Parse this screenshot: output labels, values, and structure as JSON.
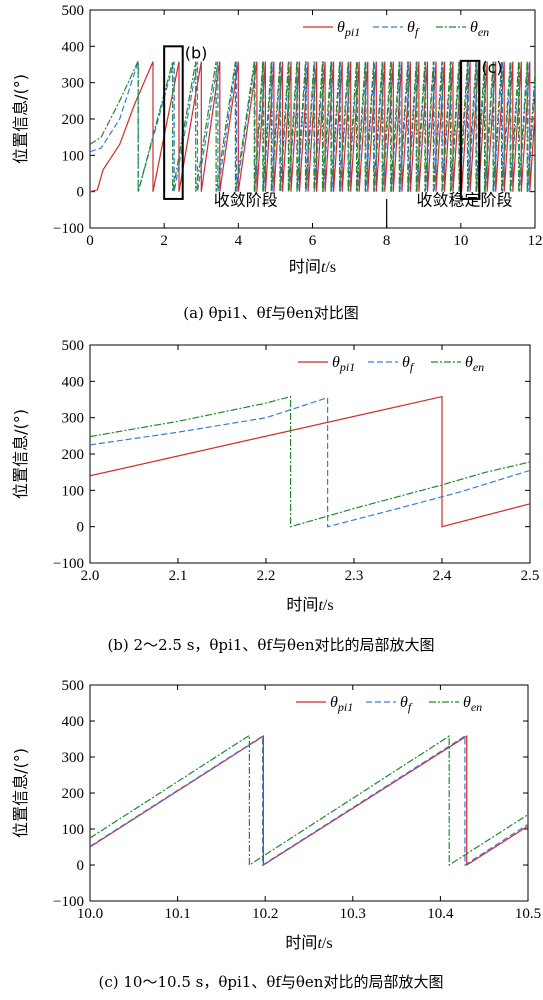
{
  "colors": {
    "pi1": "#d02b2b",
    "f": "#3b7bd6",
    "en": "#1f8a2c"
  },
  "chart_data": [
    {
      "type": "line",
      "xlabel_main": "时间",
      "xlabel_var": "t",
      "xlabel_unit": "/s",
      "ylabel": "位置信息/(°)",
      "xlim": [
        0,
        12
      ],
      "ylim": [
        -100,
        500
      ],
      "xticks": [
        "0",
        "2",
        "4",
        "6",
        "8",
        "10",
        "12"
      ],
      "yticks": [
        "−100",
        "0",
        "100",
        "200",
        "300",
        "400",
        "500"
      ],
      "legend": [
        "θpi1",
        "θf",
        "θen"
      ],
      "legend_position": "top-right",
      "caption": "(a) θpi1、θf与θen对比图",
      "region_labels": [
        "收敛阶段",
        "收敛稳定阶段"
      ],
      "region_divider_x": 8,
      "box_labels": [
        "(b)",
        "(c)"
      ],
      "boxes": [
        {
          "x": [
            2.0,
            2.5
          ],
          "y": [
            -20,
            400
          ]
        },
        {
          "x": [
            10.0,
            10.5
          ],
          "y": [
            -20,
            360
          ]
        }
      ],
      "series": [
        {
          "name": "θpi1",
          "key": "pi1",
          "mode": "sawtooth",
          "points": [
            [
              0,
              0
            ],
            [
              0.2,
              5
            ],
            [
              0.35,
              60
            ],
            [
              0.8,
              130
            ],
            [
              1.2,
              240
            ],
            [
              1.7,
              358
            ]
          ],
          "resets": [
            1.7,
            2.4,
            3.0,
            3.5,
            4.0,
            4.5
          ],
          "reset_period_after": 0.23,
          "tail_start": 4.5,
          "tail_end": 12
        },
        {
          "name": "θf",
          "key": "f",
          "mode": "sawtooth",
          "points": [
            [
              0,
              110
            ],
            [
              0.3,
              120
            ],
            [
              0.8,
              200
            ],
            [
              1.3,
              358
            ]
          ],
          "resets": [
            1.3,
            2.27,
            2.9,
            3.45,
            3.95,
            4.45
          ],
          "reset_period_after": 0.23,
          "tail_start": 4.45,
          "tail_end": 12
        },
        {
          "name": "θen",
          "key": "en",
          "mode": "sawtooth",
          "points": [
            [
              0,
              130
            ],
            [
              0.3,
              150
            ],
            [
              0.8,
              250
            ],
            [
              1.3,
              360
            ]
          ],
          "resets": [
            1.3,
            2.23,
            2.85,
            3.4,
            3.92,
            4.43
          ],
          "reset_period_after": 0.23,
          "tail_start": 4.43,
          "tail_end": 12
        }
      ]
    },
    {
      "type": "line",
      "xlabel_main": "时间",
      "xlabel_var": "t",
      "xlabel_unit": "/s",
      "ylabel": "位置信息/(°)",
      "xlim": [
        2.0,
        2.5
      ],
      "ylim": [
        -100,
        500
      ],
      "xticks": [
        "2.0",
        "2.1",
        "2.2",
        "2.3",
        "2.4",
        "2.5"
      ],
      "yticks": [
        "−100",
        "0",
        "100",
        "200",
        "300",
        "400",
        "500"
      ],
      "legend": [
        "θpi1",
        "θf",
        "θen"
      ],
      "legend_position": "top-right",
      "caption": "(b) 2～2.5 s，θpi1、θf与θen对比的局部放大图",
      "series": [
        {
          "name": "θpi1",
          "key": "pi1",
          "segments": [
            [
              [
                2.0,
                140
              ],
              [
                2.4,
                358
              ]
            ],
            [
              [
                2.4,
                0
              ],
              [
                2.5,
                63
              ]
            ]
          ]
        },
        {
          "name": "θf",
          "key": "f",
          "segments": [
            [
              [
                2.0,
                225
              ],
              [
                2.1,
                260
              ],
              [
                2.2,
                300
              ],
              [
                2.27,
                355
              ]
            ],
            [
              [
                2.27,
                0
              ],
              [
                2.35,
                50
              ],
              [
                2.42,
                95
              ],
              [
                2.5,
                155
              ]
            ]
          ]
        },
        {
          "name": "θen",
          "key": "en",
          "segments": [
            [
              [
                2.0,
                248
              ],
              [
                2.1,
                290
              ],
              [
                2.2,
                340
              ],
              [
                2.228,
                358
              ]
            ],
            [
              [
                2.228,
                0
              ],
              [
                2.3,
                50
              ],
              [
                2.4,
                115
              ],
              [
                2.45,
                150
              ],
              [
                2.5,
                178
              ]
            ]
          ]
        }
      ]
    },
    {
      "type": "line",
      "xlabel_main": "时间",
      "xlabel_var": "t",
      "xlabel_unit": "/s",
      "ylabel": "位置信息/(°)",
      "xlim": [
        10.0,
        10.5
      ],
      "ylim": [
        -100,
        500
      ],
      "xticks": [
        "10.0",
        "10.1",
        "10.2",
        "10.3",
        "10.4",
        "10.5"
      ],
      "yticks": [
        "−100",
        "0",
        "100",
        "200",
        "300",
        "400",
        "500"
      ],
      "legend": [
        "θpi1",
        "θf",
        "θen"
      ],
      "legend_position": "top-right",
      "caption": "(c) 10～10.5 s，θpi1、θf与θen对比的局部放大图",
      "series": [
        {
          "name": "θpi1",
          "key": "pi1",
          "segments": [
            [
              [
                10.0,
                50
              ],
              [
                10.198,
                358
              ]
            ],
            [
              [
                10.198,
                0
              ],
              [
                10.43,
                358
              ]
            ],
            [
              [
                10.43,
                0
              ],
              [
                10.5,
                108
              ]
            ]
          ]
        },
        {
          "name": "θf",
          "key": "f",
          "segments": [
            [
              [
                10.0,
                52
              ],
              [
                10.197,
                358
              ]
            ],
            [
              [
                10.197,
                0
              ],
              [
                10.428,
                358
              ]
            ],
            [
              [
                10.428,
                0
              ],
              [
                10.5,
                113
              ]
            ]
          ]
        },
        {
          "name": "θen",
          "key": "en",
          "segments": [
            [
              [
                10.0,
                75
              ],
              [
                10.182,
                360
              ]
            ],
            [
              [
                10.182,
                0
              ],
              [
                10.41,
                358
              ]
            ],
            [
              [
                10.41,
                0
              ],
              [
                10.5,
                140
              ]
            ]
          ]
        }
      ]
    }
  ]
}
